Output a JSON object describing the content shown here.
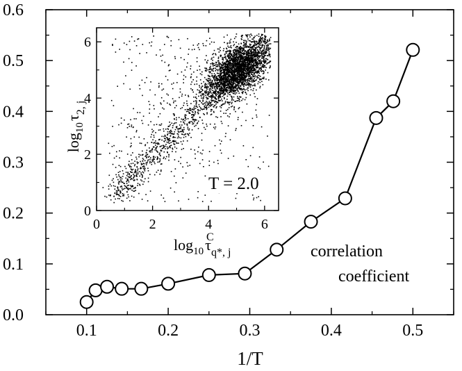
{
  "chart_data": [
    {
      "type": "line",
      "title": "",
      "xlabel": "1/T",
      "ylabel": "",
      "xlim": [
        0.05,
        0.55
      ],
      "ylim": [
        0.0,
        0.6
      ],
      "xticks": [
        0.1,
        0.2,
        0.3,
        0.4,
        0.5
      ],
      "xtick_labels": [
        "0.1",
        "0.2",
        "0.3",
        "0.4",
        "0.5"
      ],
      "yticks": [
        0.0,
        0.1,
        0.2,
        0.3,
        0.4,
        0.5,
        0.6
      ],
      "ytick_labels": [
        "0.0",
        "0.1",
        "0.2",
        "0.3",
        "0.4",
        "0.5",
        "0.6"
      ],
      "grid": false,
      "annotation": [
        "correlation",
        "coefficient"
      ],
      "series": [
        {
          "name": "correlation coefficient",
          "marker": "open-circle",
          "x": [
            0.1,
            0.111,
            0.125,
            0.143,
            0.167,
            0.2,
            0.25,
            0.294,
            0.333,
            0.375,
            0.417,
            0.455,
            0.476,
            0.5
          ],
          "y": [
            0.025,
            0.048,
            0.055,
            0.051,
            0.051,
            0.061,
            0.078,
            0.081,
            0.128,
            0.183,
            0.229,
            0.387,
            0.42,
            0.521
          ]
        }
      ]
    },
    {
      "type": "scatter",
      "inset": true,
      "title": "",
      "xlabel": "log10 τ^C_{q*,j}",
      "ylabel": "log10 τ_{2,j}",
      "xlabel_parts": {
        "log": "log",
        "base": "10",
        "tau": "τ",
        "sup": "C",
        "sub": "q*, j"
      },
      "ylabel_parts": {
        "log": "log",
        "base": "10",
        "tau": "τ",
        "sub": "2, j"
      },
      "annotation": "T = 2.0",
      "xlim": [
        0,
        6.5
      ],
      "ylim": [
        0,
        6.5
      ],
      "xticks": [
        0,
        2,
        4,
        6
      ],
      "xtick_labels": [
        "0",
        "2",
        "4",
        "6"
      ],
      "yticks": [
        0,
        2,
        4,
        6
      ],
      "ytick_labels": [
        "0",
        "2",
        "4",
        "6"
      ],
      "cluster": {
        "description": "dense cloud of points centered near (5.0, 5.0), with a diagonal band along y = x spanning roughly 0.5 to 6.2 on both axes, plus sparse scatter below and above the diagonal",
        "center": [
          5.0,
          5.0
        ],
        "range_x": [
          0.5,
          6.2
        ],
        "range_y": [
          0.3,
          6.3
        ]
      }
    }
  ]
}
